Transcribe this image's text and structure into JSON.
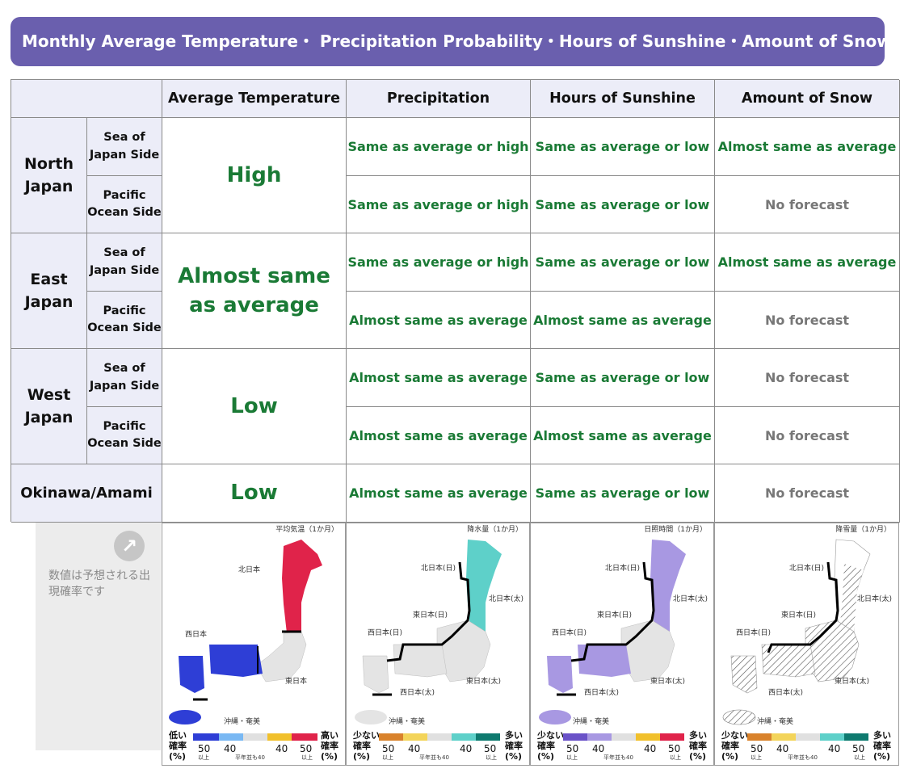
{
  "banner": {
    "title": "Monthly Average Temperature・ Precipitation Probability・Hours of Sunshine・Amount of Snow"
  },
  "table": {
    "headers": [
      "Average Temperature",
      "Precipitation",
      "Hours of Sunshine",
      "Amount of Snow"
    ],
    "regions": [
      {
        "name": "North Japan",
        "temperature": "High",
        "sides": [
          {
            "label": "Sea of Japan Side",
            "precipitation": "Same as average or high",
            "sunshine": "Same as average or low",
            "snow": "Almost same as average"
          },
          {
            "label": "Pacific Ocean Side",
            "precipitation": "Same as average or high",
            "sunshine": "Same as average or low",
            "snow": "No forecast"
          }
        ]
      },
      {
        "name": "East Japan",
        "temperature": "Almost same as average",
        "sides": [
          {
            "label": "Sea of Japan Side",
            "precipitation": "Same as average or high",
            "sunshine": "Same as average or low",
            "snow": "Almost same as average"
          },
          {
            "label": "Pacific Ocean Side",
            "precipitation": "Almost same as average",
            "sunshine": "Almost same as average",
            "snow": "No forecast"
          }
        ]
      },
      {
        "name": "West Japan",
        "temperature": "Low",
        "sides": [
          {
            "label": "Sea of Japan Side",
            "precipitation": "Almost same as average",
            "sunshine": "Same as average or low",
            "snow": "No forecast"
          },
          {
            "label": "Pacific Ocean Side",
            "precipitation": "Almost same as average",
            "sunshine": "Almost same as average",
            "snow": "No forecast"
          }
        ]
      },
      {
        "name": "Okinawa/Amami",
        "temperature": "Low",
        "precipitation": "Almost same as average",
        "sunshine": "Same as average or low",
        "snow": "No forecast"
      }
    ]
  },
  "note": {
    "icon": "arrow-up-right-icon",
    "text": "数値は予想される出現確率です"
  },
  "maps": [
    {
      "title": "平均気温（1か月）",
      "labels": [
        "北日本",
        "西日本",
        "東日本",
        "沖縄・奄美"
      ],
      "legend": {
        "low": "低い",
        "high": "高い",
        "rate": "確率",
        "pct": "(%)",
        "n50": "50",
        "n40": "40",
        "ijou": "以上",
        "mid": "平年並も40"
      },
      "colors": {
        "low_dark": "#2e3ed6",
        "low_light": "#79b8f3",
        "high_light": "#f1c02b",
        "high_dark": "#e0234a"
      }
    },
    {
      "title": "降水量（1か月）",
      "labels": [
        "北日本(日)",
        "北日本(太)",
        "東日本(日)",
        "西日本(日)",
        "東日本(太)",
        "西日本(太)",
        "沖縄・奄美"
      ],
      "legend": {
        "low": "少ない",
        "high": "多い",
        "rate": "確率",
        "pct": "(%)",
        "n50": "50",
        "n40": "40",
        "ijou": "以上",
        "mid": "平年並も40"
      },
      "colors": {
        "low_dark": "#d9822b",
        "low_light": "#f3d45a",
        "high_light": "#5ed0c9",
        "high_dark": "#0e7a6f"
      }
    },
    {
      "title": "日照時間（1か月）",
      "labels": [
        "北日本(日)",
        "北日本(太)",
        "東日本(日)",
        "西日本(日)",
        "東日本(太)",
        "西日本(太)",
        "沖縄・奄美"
      ],
      "legend": {
        "low": "少ない",
        "high": "多い",
        "rate": "確率",
        "pct": "(%)",
        "n50": "50",
        "n40": "40",
        "ijou": "以上",
        "mid": "平年並も40"
      },
      "colors": {
        "low_dark": "#6a52c8",
        "low_light": "#a898e2",
        "high_light": "#f1c02b",
        "high_dark": "#e0234a"
      }
    },
    {
      "title": "降雪量（1か月）",
      "labels": [
        "北日本(日)",
        "北日本(太)",
        "東日本(日)",
        "西日本(日)",
        "東日本(太)",
        "西日本(太)",
        "沖縄・奄美"
      ],
      "legend": {
        "low": "少ない",
        "high": "多い",
        "rate": "確率",
        "pct": "(%)",
        "n50": "50",
        "n40": "40",
        "ijou": "以上",
        "mid": "平年並も40"
      },
      "colors": {
        "low_dark": "#d9822b",
        "low_light": "#f3d45a",
        "high_light": "#5ed0c9",
        "high_dark": "#0e7a6f"
      }
    }
  ]
}
